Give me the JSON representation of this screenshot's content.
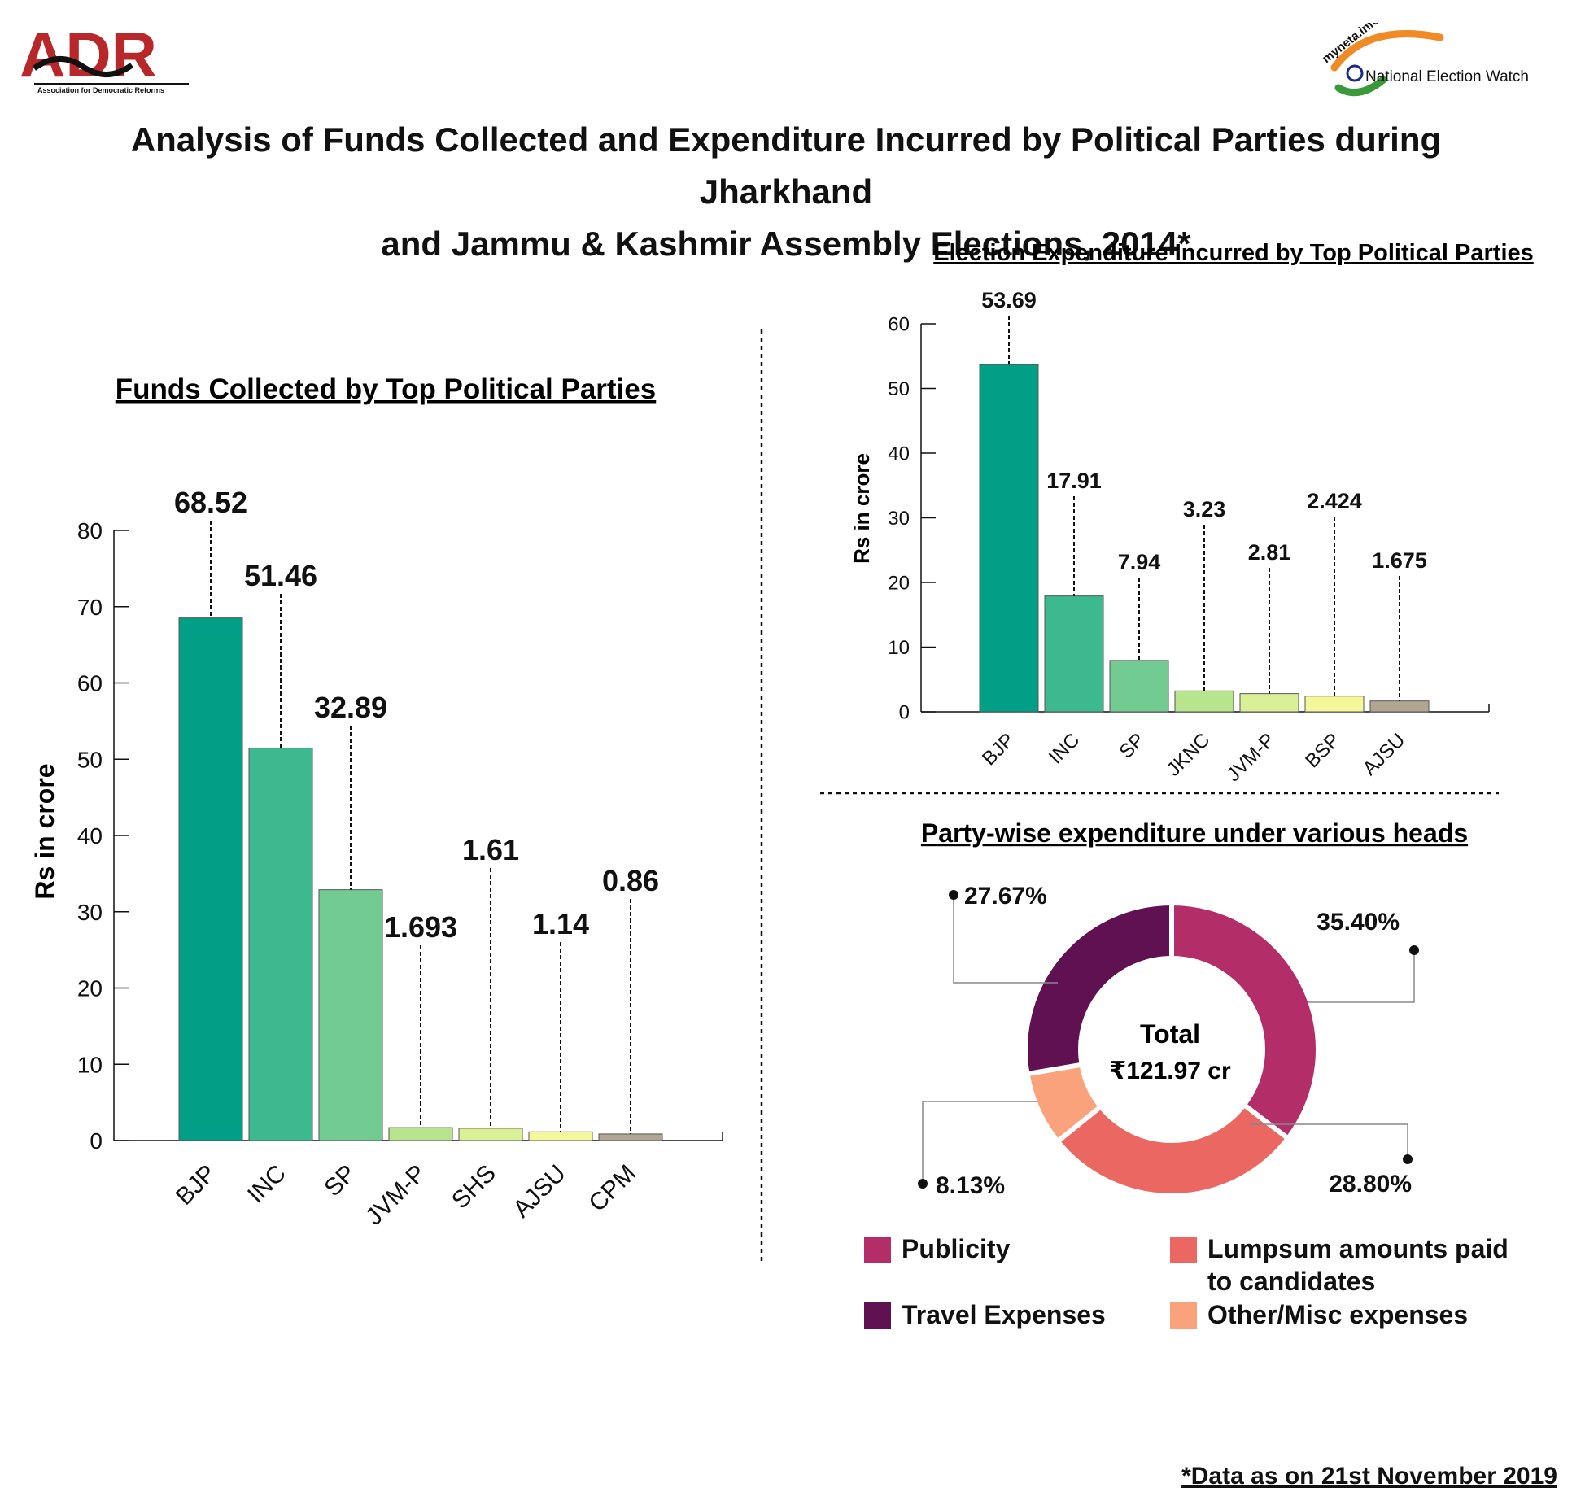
{
  "header": {
    "logo_left": "ADR",
    "logo_left_tagline": "Association for Democratic Reforms",
    "logo_right_small": "myneta.info",
    "logo_right_text": "National Election Watch"
  },
  "title_line1": "Analysis of Funds Collected and Expenditure Incurred by Political Parties during Jharkhand",
  "title_line2": "and Jammu & Kashmir Assembly Elections, 2014*",
  "footnote": "*Data as on 21st November 2019",
  "colors": {
    "bar1": "#009f86",
    "bar2": "#3cb98e",
    "bar3": "#72cb91",
    "bar4": "#b7e48d",
    "bar5": "#d9f096",
    "bar6": "#f4f79c",
    "bar7": "#b1a691",
    "publicity": "#b32d68",
    "travel": "#5f1151",
    "lumpsum": "#ea6762",
    "other": "#f9a27c"
  },
  "chart_data": [
    {
      "type": "bar",
      "title": "Funds Collected by Top Political Parties",
      "ylabel": "Rs in crore",
      "categories": [
        "BJP",
        "INC",
        "SP",
        "JVM-P",
        "SHS",
        "AJSU",
        "CPM"
      ],
      "values": [
        68.52,
        51.46,
        32.89,
        1.693,
        1.61,
        1.14,
        0.86
      ],
      "value_labels": [
        "68.52",
        "51.46",
        "32.89",
        "1.693",
        "1.61",
        "1.14",
        "0.86"
      ],
      "ylim": [
        0,
        80
      ],
      "yticks": [
        "0",
        "10",
        "20",
        "30",
        "40",
        "50",
        "60",
        "70",
        "80"
      ],
      "grid": false
    },
    {
      "type": "bar",
      "title": "Election Expenditure Incurred by Top Political Parties",
      "ylabel": "Rs in crore",
      "categories": [
        "BJP",
        "INC",
        "SP",
        "JKNC",
        "JVM-P",
        "BSP",
        "AJSU"
      ],
      "values": [
        53.69,
        17.91,
        7.94,
        3.23,
        2.81,
        2.424,
        1.675
      ],
      "value_labels": [
        "53.69",
        "17.91",
        "7.94",
        "3.23",
        "2.81",
        "2.424",
        "1.675"
      ],
      "ylim": [
        0,
        60
      ],
      "yticks": [
        "0",
        "10",
        "20",
        "30",
        "40",
        "50",
        "60"
      ],
      "grid": false
    },
    {
      "type": "pie",
      "title": "Party-wise expenditure under various heads",
      "center_label": "Total",
      "center_value": "₹121.97 cr",
      "slices": [
        {
          "name": "Publicity",
          "value": 35.4,
          "label": "35.40%"
        },
        {
          "name": "Lumpsum amounts paid to candidates",
          "value": 28.8,
          "label": "28.80%"
        },
        {
          "name": "Other/Misc expenses",
          "value": 8.13,
          "label": "8.13%"
        },
        {
          "name": "Travel Expenses",
          "value": 27.67,
          "label": "27.67%"
        }
      ]
    }
  ]
}
